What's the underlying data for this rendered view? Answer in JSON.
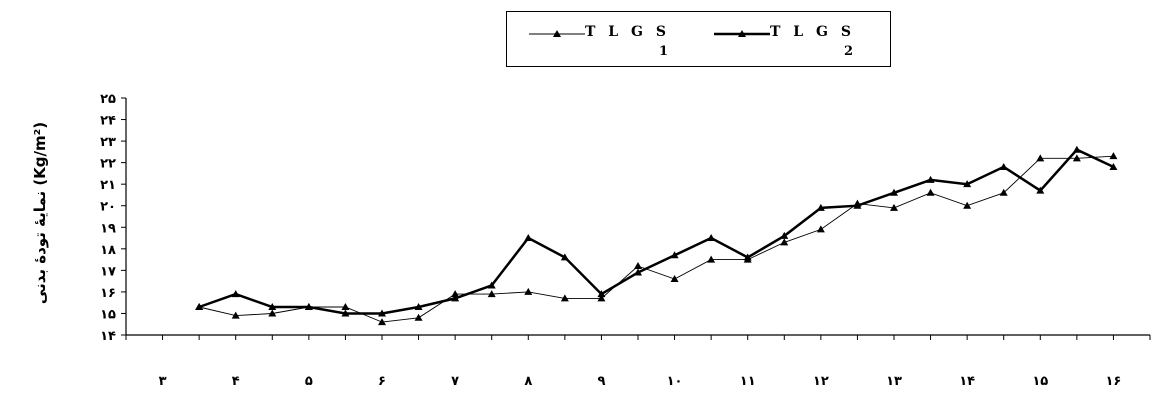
{
  "chart_data": {
    "type": "line",
    "title": "",
    "xlabel": "",
    "ylabel": "نمایهٔ تودهٔ بدنی (Kg/m²)",
    "x_tick_labels": [
      "۳",
      "۴",
      "۵",
      "۶",
      "۷",
      "۸",
      "۹",
      "۱۰",
      "۱۱",
      "۱۲",
      "۱۳",
      "۱۴",
      "۱۵",
      "۱۶"
    ],
    "y_tick_labels": [
      "۱۴",
      "۱۵",
      "۱۶",
      "۱۷",
      "۱۸",
      "۱۹",
      "۲۰",
      "۲۱",
      "۲۲",
      "۲۳",
      "۲۴",
      "۲۵"
    ],
    "ylim": [
      14,
      25
    ],
    "x": [
      3.5,
      4,
      4.5,
      5,
      5.5,
      6,
      6.5,
      7,
      7.5,
      8,
      8.5,
      9,
      9.5,
      10,
      10.5,
      11,
      11.5,
      12,
      12.5,
      13,
      13.5,
      14,
      14.5,
      15,
      15.5,
      16
    ],
    "series": [
      {
        "name": "TLGS1",
        "marker": "triangle",
        "line": "thin",
        "values": [
          15.3,
          14.9,
          15.0,
          15.3,
          15.3,
          14.6,
          14.8,
          15.9,
          15.9,
          16.0,
          15.7,
          15.7,
          17.2,
          16.6,
          17.5,
          17.5,
          18.3,
          18.9,
          20.1,
          19.9,
          20.6,
          20.0,
          20.6,
          22.2,
          22.2,
          22.3
        ],
        "color": "#000000"
      },
      {
        "name": "TLGS2",
        "marker": "triangle",
        "line": "thick",
        "values": [
          15.3,
          15.9,
          15.3,
          15.3,
          15.0,
          15.0,
          15.3,
          15.7,
          16.3,
          18.5,
          17.6,
          15.9,
          16.9,
          17.7,
          18.5,
          17.6,
          18.6,
          19.9,
          20.0,
          20.6,
          21.2,
          21.0,
          21.8,
          20.7,
          22.6,
          21.8
        ],
        "color": "#000000"
      }
    ],
    "legend": {
      "position": "top-center",
      "entries": [
        {
          "label": "T L G S",
          "subscript": "1",
          "line": "thin"
        },
        {
          "label": "T L G S",
          "subscript": "2",
          "line": "thick"
        }
      ]
    },
    "grid": false
  }
}
